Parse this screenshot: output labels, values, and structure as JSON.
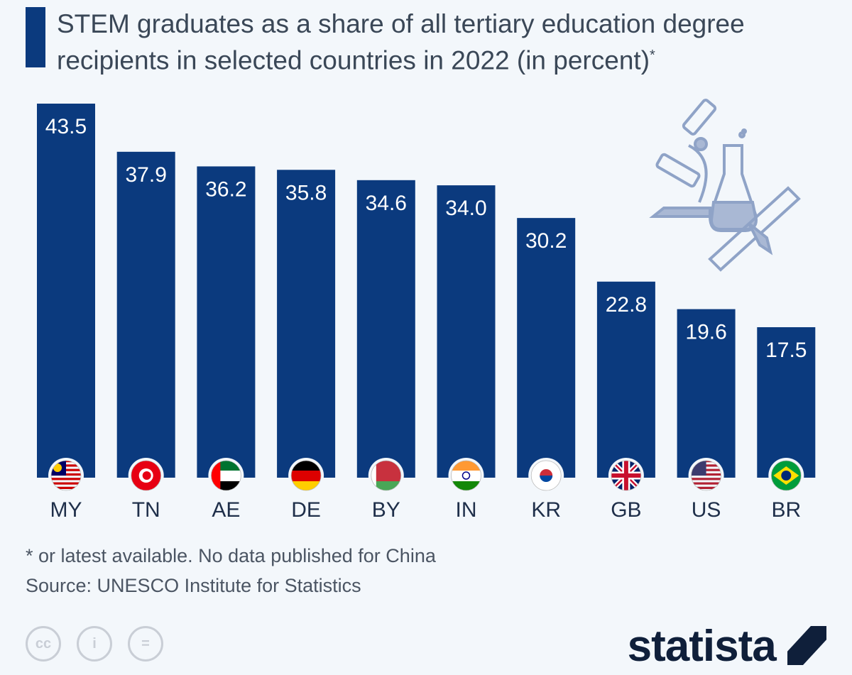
{
  "title": "STEM graduates as a share of all tertiary education degree recipients in selected countries in 2022 (in percent)",
  "title_marker": "*",
  "footnote": "* or latest available. No data published for China",
  "source": "Source: UNESCO Institute for Statistics",
  "brand": "statista",
  "license_icons": [
    "cc-icon",
    "attribution-icon",
    "no-derivatives-icon"
  ],
  "colors": {
    "bar": "#0b3a7e",
    "background": "#f3f7fb",
    "label": "#1f2f4a"
  },
  "chart_data": {
    "type": "bar",
    "title": "STEM graduates as a share of all tertiary education degree recipients in selected countries in 2022 (in percent)",
    "categories": [
      "MY",
      "TN",
      "AE",
      "DE",
      "BY",
      "IN",
      "KR",
      "GB",
      "US",
      "BR"
    ],
    "values": [
      43.5,
      37.9,
      36.2,
      35.8,
      34.6,
      34.0,
      30.2,
      22.8,
      19.6,
      17.5
    ],
    "labels": [
      "43.5",
      "37.9",
      "36.2",
      "35.8",
      "34.6",
      "34.0",
      "30.2",
      "22.8",
      "19.6",
      "17.5"
    ],
    "xlabel": "",
    "ylabel": "",
    "ylim": [
      0,
      43.5
    ],
    "grid": false
  }
}
